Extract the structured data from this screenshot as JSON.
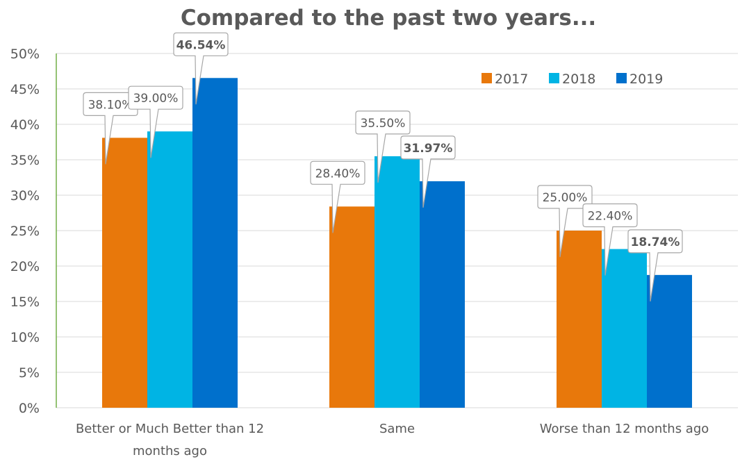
{
  "chart_data": {
    "type": "bar",
    "title": "Compared to the past two years...",
    "categories": [
      [
        "Better or Much Better than 12",
        "months ago"
      ],
      [
        "Same"
      ],
      [
        "Worse than 12 months ago"
      ]
    ],
    "series": [
      {
        "name": "2017",
        "color": "#E8780B",
        "values": [
          38.1,
          28.4,
          25.0
        ],
        "labels": [
          "38.10%",
          "28.40%",
          "25.00%"
        ],
        "bold_labels": false
      },
      {
        "name": "2018",
        "color": "#00B4E4",
        "values": [
          39.0,
          35.5,
          22.4
        ],
        "labels": [
          "39.00%",
          "35.50%",
          "22.40%"
        ],
        "bold_labels": false
      },
      {
        "name": "2019",
        "color": "#0070CC",
        "values": [
          46.54,
          31.97,
          18.74
        ],
        "labels": [
          "46.54%",
          "31.97%",
          "18.74%"
        ],
        "bold_labels": true
      }
    ],
    "y_ticks": [
      "0%",
      "5%",
      "10%",
      "15%",
      "20%",
      "25%",
      "30%",
      "35%",
      "40%",
      "45%",
      "50%"
    ],
    "ylim": [
      0,
      50
    ],
    "y_unit": "%",
    "grid": true,
    "legend_position": "top-right",
    "xlabel": "",
    "ylabel": ""
  }
}
